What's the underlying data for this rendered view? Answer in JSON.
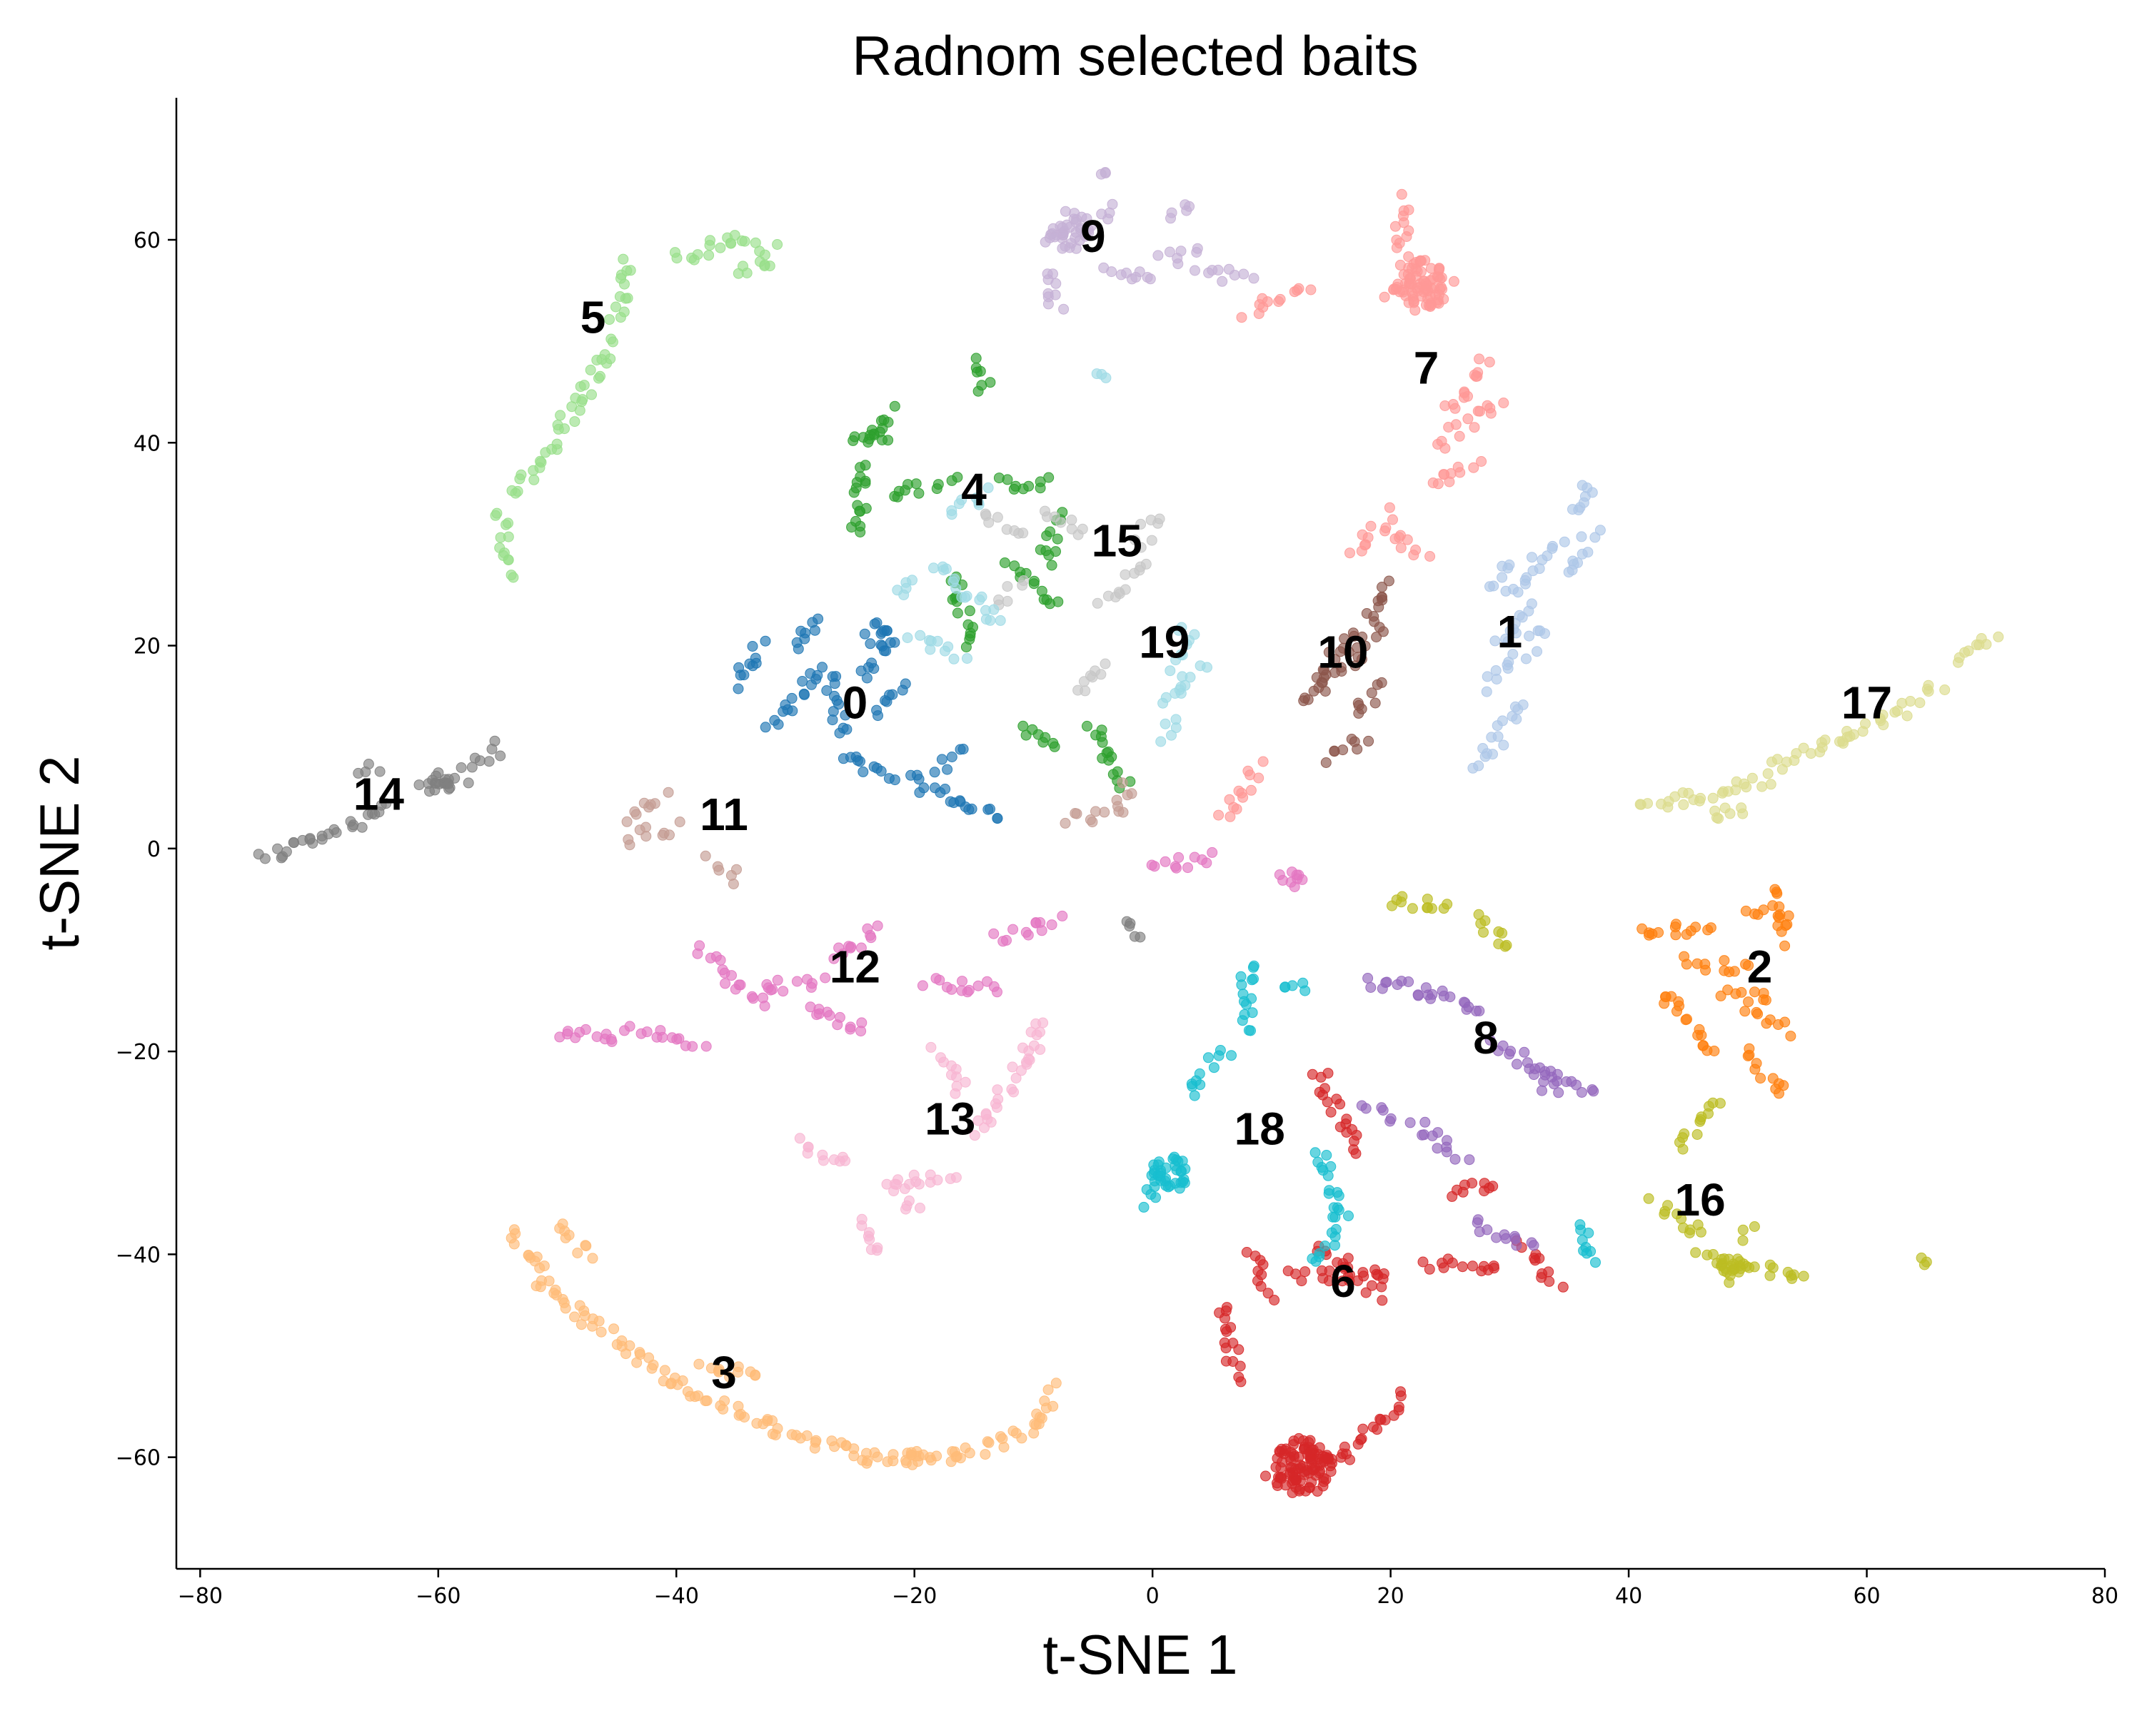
{
  "chart_data": {
    "type": "scatter",
    "title": "Radnom selected baits",
    "xlabel": "t-SNE 1",
    "ylabel": "t-SNE 2",
    "xlim": [
      -82,
      80
    ],
    "ylim": [
      -71,
      74
    ],
    "xticks": [
      -80,
      -60,
      -40,
      -20,
      0,
      20,
      40,
      60,
      80
    ],
    "yticks": [
      -60,
      -40,
      -20,
      0,
      20,
      40,
      60
    ],
    "grid": false,
    "legend": "none",
    "series": [
      {
        "label": "0",
        "color": "#1f77b4",
        "label_pos": [
          -25,
          14
        ],
        "segments": [
          [
            -35,
            16,
            -33,
            20
          ],
          [
            -32,
            12,
            -28,
            18
          ],
          [
            -30,
            20,
            -28,
            23
          ],
          [
            -27,
            17,
            -26,
            11
          ],
          [
            -26,
            9,
            -22,
            7
          ],
          [
            -21,
            7,
            -13,
            3
          ],
          [
            -24,
            17,
            -22,
            21
          ],
          [
            -23,
            13,
            -21,
            16
          ],
          [
            -18,
            8,
            -16,
            10
          ]
        ]
      },
      {
        "label": "1",
        "color": "#aec7e8",
        "label_pos": [
          30,
          21
        ],
        "segments": [
          [
            27,
            8,
            31,
            14
          ],
          [
            28,
            16,
            31,
            19
          ],
          [
            29,
            20,
            32,
            24
          ],
          [
            30,
            25,
            34,
            30
          ],
          [
            35,
            27,
            37,
            31
          ],
          [
            35,
            33,
            37,
            36
          ],
          [
            28,
            26,
            30,
            28
          ],
          [
            32,
            20,
            33,
            22
          ]
        ]
      },
      {
        "label": "2",
        "color": "#ff7f0e",
        "label_pos": [
          51,
          -12
        ],
        "segments": [
          [
            41,
            -8,
            47,
            -8
          ],
          [
            45,
            -11,
            50,
            -12
          ],
          [
            48,
            -14,
            52,
            -15
          ],
          [
            50,
            -16,
            53,
            -18
          ],
          [
            50,
            -20,
            53,
            -24
          ],
          [
            52,
            -4,
            53,
            -9
          ],
          [
            50,
            -6,
            53,
            -6
          ],
          [
            43,
            -14,
            47,
            -20
          ]
        ]
      },
      {
        "label": "3",
        "color": "#ffbb78",
        "label_pos": [
          -36,
          -52
        ],
        "segments": [
          [
            -54,
            -38,
            -51,
            -42
          ],
          [
            -52,
            -42,
            -47,
            -47
          ],
          [
            -47,
            -47,
            -40,
            -53
          ],
          [
            -40,
            -53,
            -32,
            -57
          ],
          [
            -32,
            -57,
            -24,
            -60
          ],
          [
            -24,
            -60,
            -16,
            -60
          ],
          [
            -16,
            -60,
            -10,
            -57
          ],
          [
            -10,
            -57,
            -8,
            -53
          ],
          [
            -50,
            -37,
            -47,
            -40
          ],
          [
            -38,
            -51,
            -33,
            -52
          ]
        ]
      },
      {
        "label": "4",
        "color": "#2ca02c",
        "label_pos": [
          -15,
          35
        ],
        "segments": [
          [
            -25,
            40,
            -22,
            43
          ],
          [
            -25,
            31,
            -24,
            38
          ],
          [
            -22,
            35,
            -17,
            36
          ],
          [
            -13,
            36,
            -9,
            36
          ],
          [
            -17,
            27,
            -15,
            20
          ],
          [
            -12,
            28,
            -8,
            24
          ],
          [
            -14,
            45,
            -15,
            48
          ],
          [
            -11,
            12,
            -8,
            10
          ],
          [
            -8,
            33,
            -9,
            28
          ],
          [
            -5,
            12,
            -2,
            6
          ]
        ]
      },
      {
        "label": "5",
        "color": "#98df8a",
        "label_pos": [
          -47,
          52
        ],
        "segments": [
          [
            -54,
            27,
            -55,
            33
          ],
          [
            -54,
            35,
            -50,
            40
          ],
          [
            -50,
            41,
            -45,
            50
          ],
          [
            -45,
            52,
            -44,
            58
          ],
          [
            -40,
            58,
            -36,
            60
          ],
          [
            -36,
            60,
            -32,
            59
          ],
          [
            -35,
            57,
            -32,
            58
          ]
        ]
      },
      {
        "label": "6",
        "color": "#d62728",
        "label_pos": [
          16,
          -43
        ],
        "segments": [
          [
            12,
            -42,
            20,
            -42
          ],
          [
            14,
            -39,
            19,
            -44
          ],
          [
            8,
            -40,
            10,
            -44
          ],
          [
            6,
            -45,
            7,
            -52
          ],
          [
            10,
            -62,
            16,
            -60
          ],
          [
            16,
            -60,
            21,
            -54
          ],
          [
            14,
            -22,
            17,
            -30
          ],
          [
            25,
            -34,
            29,
            -33
          ],
          [
            23,
            -41,
            29,
            -41
          ],
          [
            31,
            -39,
            34,
            -43
          ]
        ]
      },
      {
        "label": "7",
        "color": "#ff9896",
        "label_pos": [
          23,
          47
        ],
        "segments": [
          [
            20,
            55,
            25,
            56
          ],
          [
            21,
            58,
            21,
            64
          ],
          [
            24,
            40,
            29,
            44
          ],
          [
            25,
            43,
            28,
            48
          ],
          [
            17,
            29,
            20,
            33
          ],
          [
            20,
            31,
            23,
            29
          ],
          [
            8,
            53,
            13,
            55
          ],
          [
            23,
            36,
            27,
            38
          ],
          [
            6,
            3,
            9,
            8
          ]
        ]
      },
      {
        "label": "8",
        "color": "#9467bd",
        "label_pos": [
          28,
          -19
        ],
        "segments": [
          [
            18,
            -13,
            23,
            -14
          ],
          [
            23,
            -14,
            28,
            -16
          ],
          [
            29,
            -19,
            34,
            -24
          ],
          [
            32,
            -22,
            37,
            -24
          ],
          [
            18,
            -25,
            20,
            -27
          ],
          [
            22,
            -27,
            26,
            -31
          ],
          [
            27,
            -37,
            32,
            -39
          ]
        ]
      },
      {
        "label": "9",
        "color": "#c5b0d5",
        "label_pos": [
          -5,
          60
        ],
        "segments": [
          [
            -9,
            60,
            -6,
            61
          ],
          [
            -9,
            57,
            -8,
            53
          ],
          [
            -5,
            61,
            -3,
            63
          ],
          [
            1,
            58,
            4,
            59
          ],
          [
            4,
            57,
            8,
            56
          ],
          [
            -4,
            57,
            0,
            56
          ],
          [
            2,
            62,
            3,
            64
          ],
          [
            -4,
            67,
            -4,
            67
          ]
        ]
      },
      {
        "label": "10",
        "color": "#8c564b",
        "label_pos": [
          16,
          19
        ],
        "segments": [
          [
            14,
            16,
            18,
            20
          ],
          [
            15,
            19,
            19,
            22
          ],
          [
            18,
            22,
            20,
            26
          ],
          [
            15,
            9,
            18,
            11
          ],
          [
            13,
            14,
            15,
            18
          ],
          [
            17,
            13,
            19,
            16
          ]
        ]
      },
      {
        "label": "11",
        "color": "#c49c94",
        "label_pos": [
          -36,
          3
        ],
        "segments": [
          [
            -44,
            3,
            -41,
            5
          ],
          [
            -44,
            1,
            -40,
            2
          ],
          [
            -37,
            -1,
            -35,
            -3
          ],
          [
            -7,
            3,
            -4,
            3
          ],
          [
            -3,
            3,
            -2,
            6
          ]
        ]
      },
      {
        "label": "12",
        "color": "#e377c2",
        "label_pos": [
          -25,
          -12
        ],
        "segments": [
          [
            -50,
            -18,
            -45,
            -19
          ],
          [
            -44,
            -18,
            -38,
            -19
          ],
          [
            -38,
            -10,
            -33,
            -15
          ],
          [
            -33,
            -14,
            -28,
            -13
          ],
          [
            -27,
            -11,
            -23,
            -8
          ],
          [
            -19,
            -13,
            -13,
            -14
          ],
          [
            -13,
            -9,
            -8,
            -7
          ],
          [
            -29,
            -16,
            -24,
            -18
          ],
          [
            0,
            -2,
            5,
            -1
          ],
          [
            11,
            -3,
            12,
            -3
          ]
        ]
      },
      {
        "label": "13",
        "color": "#f7b6d2",
        "label_pos": [
          -17,
          -27
        ],
        "segments": [
          [
            -26,
            -31,
            -30,
            -29
          ],
          [
            -25,
            -37,
            -23,
            -40
          ],
          [
            -22,
            -33,
            -17,
            -32
          ],
          [
            -15,
            -28,
            -10,
            -20
          ],
          [
            -18,
            -20,
            -16,
            -24
          ],
          [
            -9,
            -17,
            -11,
            -20
          ],
          [
            -22,
            -33,
            -20,
            -36
          ]
        ]
      },
      {
        "label": "14",
        "color": "#7f7f7f",
        "label_pos": [
          -65,
          5
        ],
        "segments": [
          [
            -75,
            -1,
            -70,
            1
          ],
          [
            -70,
            1,
            -64,
            4
          ],
          [
            -61,
            6,
            -58,
            7
          ],
          [
            -58,
            8,
            -55,
            10
          ],
          [
            -67,
            8,
            -65,
            8
          ],
          [
            -2,
            -7,
            -1,
            -9
          ]
        ]
      },
      {
        "label": "15",
        "color": "#c7c7c7",
        "label_pos": [
          -3,
          30
        ],
        "segments": [
          [
            -14,
            33,
            -11,
            31
          ],
          [
            -9,
            33,
            -6,
            31
          ],
          [
            -4,
            24,
            -1,
            28
          ],
          [
            -1,
            30,
            0,
            33
          ],
          [
            -13,
            24,
            -11,
            26
          ],
          [
            -6,
            15,
            -4,
            18
          ]
        ]
      },
      {
        "label": "16",
        "color": "#bcbd22",
        "label_pos": [
          46,
          -35
        ],
        "segments": [
          [
            42,
            -35,
            46,
            -38
          ],
          [
            46,
            -40,
            49,
            -42
          ],
          [
            49,
            -41,
            55,
            -42
          ],
          [
            49,
            -38,
            50,
            -37
          ],
          [
            44,
            -29,
            48,
            -25
          ],
          [
            20,
            -5,
            25,
            -6
          ],
          [
            27,
            -7,
            30,
            -10
          ],
          [
            65,
            -41,
            65,
            -41
          ]
        ]
      },
      {
        "label": "17",
        "color": "#dbdb8d",
        "label_pos": [
          60,
          14
        ],
        "segments": [
          [
            41,
            4,
            45,
            5
          ],
          [
            45,
            5,
            52,
            7
          ],
          [
            52,
            8,
            58,
            11
          ],
          [
            58,
            11,
            64,
            14
          ],
          [
            64,
            15,
            66,
            16
          ],
          [
            68,
            18,
            71,
            21
          ],
          [
            47,
            3,
            50,
            4
          ]
        ]
      },
      {
        "label": "18",
        "color": "#17becf",
        "label_pos": [
          9,
          -28
        ],
        "segments": [
          [
            8,
            -11,
            8,
            -18
          ],
          [
            6,
            -20,
            3,
            -24
          ],
          [
            2,
            -32,
            1,
            -32
          ],
          [
            -1,
            -35,
            1,
            -33
          ],
          [
            14,
            -30,
            16,
            -36
          ],
          [
            16,
            -36,
            14,
            -41
          ],
          [
            11,
            -13,
            13,
            -14
          ],
          [
            36,
            -37,
            37,
            -41
          ]
        ]
      },
      {
        "label": "19",
        "color": "#9edae5",
        "label_pos": [
          1,
          20
        ],
        "segments": [
          [
            1,
            14,
            4,
            18
          ],
          [
            2,
            18,
            3,
            22
          ],
          [
            -17,
            33,
            -14,
            35
          ],
          [
            -18,
            28,
            -13,
            22
          ],
          [
            -20,
            21,
            -16,
            19
          ],
          [
            -20,
            26,
            -22,
            25
          ],
          [
            1,
            11,
            2,
            13
          ],
          [
            -5,
            47,
            -4,
            47
          ]
        ]
      }
    ],
    "dense_blobs": [
      {
        "label": "0",
        "at": [
          -23,
          21
        ],
        "r": 1.2,
        "n": 10
      },
      {
        "label": "4",
        "at": [
          -23,
          40.5
        ],
        "r": 1.0,
        "n": 8
      },
      {
        "label": "9",
        "at": [
          -7,
          61
        ],
        "r": 1.8,
        "n": 30
      },
      {
        "label": "7",
        "at": [
          22.5,
          55.5
        ],
        "r": 2.3,
        "n": 70
      },
      {
        "label": "14",
        "at": [
          -60,
          6.5
        ],
        "r": 1.2,
        "n": 14
      },
      {
        "label": "18",
        "at": [
          1.5,
          -32
        ],
        "r": 1.6,
        "n": 30
      },
      {
        "label": "16",
        "at": [
          48.5,
          -41.5
        ],
        "r": 1.2,
        "n": 16
      },
      {
        "label": "3",
        "at": [
          -20,
          -60.3
        ],
        "r": 0.9,
        "n": 8
      },
      {
        "label": "6",
        "at": [
          12.5,
          -61
        ],
        "r": 2.6,
        "n": 90
      },
      {
        "label": "12",
        "at": [
          12,
          -3
        ],
        "r": 0.8,
        "n": 6
      }
    ]
  }
}
